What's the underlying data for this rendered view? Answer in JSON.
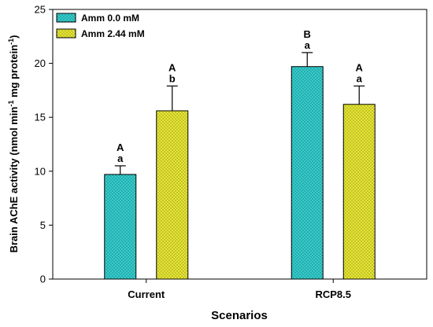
{
  "chart_data": {
    "type": "bar",
    "xlabel": "Scenarios",
    "ylabel_main": "Brain AChE activity (nmol min",
    "ylabel_sup1": "-1",
    "ylabel_mid": " mg protein",
    "ylabel_sup2": "-1",
    "ylabel_end": ")",
    "ylim": [
      0,
      25
    ],
    "yticks": [
      0,
      5,
      10,
      15,
      20,
      25
    ],
    "categories": [
      "Current",
      "RCP8.5"
    ],
    "series": [
      {
        "name": "Amm 0.0 mM",
        "color": "#33cccc",
        "values": [
          9.7,
          19.7
        ],
        "errors": [
          0.8,
          1.3
        ],
        "letters_upper": [
          "A",
          "B"
        ],
        "letters_lower": [
          "a",
          "a"
        ]
      },
      {
        "name": "Amm 2.44 mM",
        "color": "#e6e633",
        "values": [
          15.6,
          16.2
        ],
        "errors": [
          2.3,
          1.7
        ],
        "letters_upper": [
          "A",
          "A"
        ],
        "letters_lower": [
          "b",
          "a"
        ]
      }
    ],
    "legend_position": "top-left",
    "grid": false
  }
}
